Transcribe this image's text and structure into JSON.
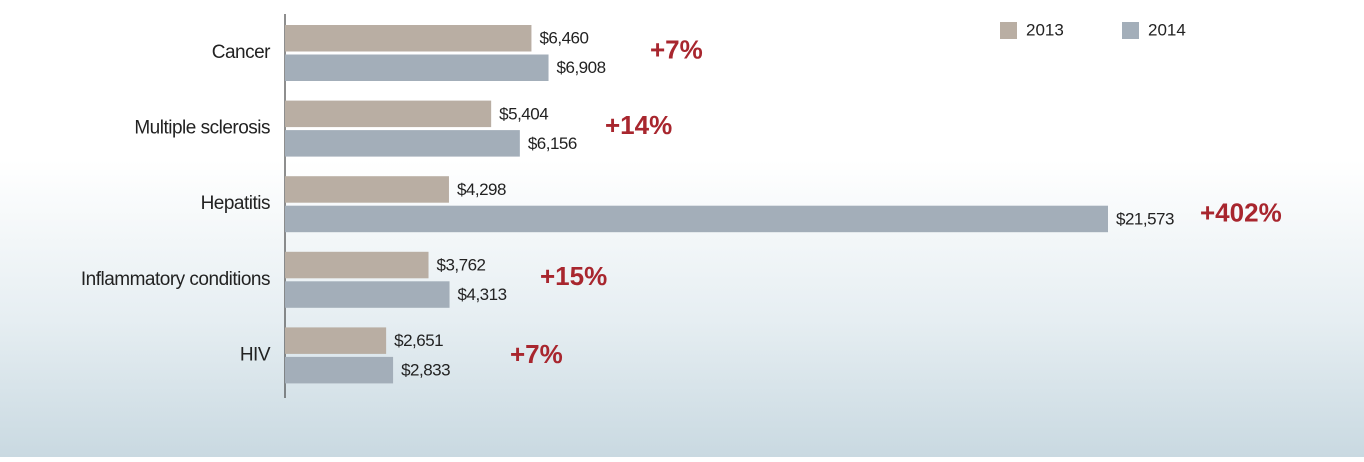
{
  "chart_data": {
    "type": "hbar",
    "categories": [
      "Cancer",
      "Multiple sclerosis",
      "Hepatitis",
      "Inflammatory conditions",
      "HIV"
    ],
    "series": [
      {
        "name": "2013",
        "color": "#b9aea3",
        "values": [
          6460,
          5404,
          4298,
          3762,
          2651
        ],
        "value_labels": [
          "$6,460",
          "$5,404",
          "$4,298",
          "$3,762",
          "$2,651"
        ]
      },
      {
        "name": "2014",
        "color": "#a3aeb9",
        "values": [
          6908,
          6156,
          21573,
          4313,
          2833
        ],
        "value_labels": [
          "$6,908",
          "$6,156",
          "$21,573",
          "$4,313",
          "$2,833"
        ]
      }
    ],
    "annotations": [
      "+7%",
      "+14%",
      "+402%",
      "+15%",
      "+7%"
    ],
    "annotation_color": "#a8262e",
    "legend": "top-right"
  }
}
